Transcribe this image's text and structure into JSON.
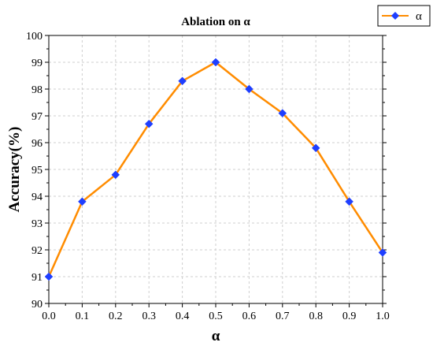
{
  "chart_data": {
    "type": "line",
    "title": "Ablation on α",
    "xlabel": "α",
    "ylabel": "Accuracy(%)",
    "x": [
      0.0,
      0.1,
      0.2,
      0.3,
      0.4,
      0.5,
      0.6,
      0.7,
      0.8,
      0.9,
      1.0
    ],
    "xlim": [
      0.0,
      1.0
    ],
    "ylim": [
      90,
      100
    ],
    "xticks": [
      "0.0",
      "0.1",
      "0.2",
      "0.3",
      "0.4",
      "0.5",
      "0.6",
      "0.7",
      "0.8",
      "0.9",
      "1.0"
    ],
    "yticks": [
      "90",
      "91",
      "92",
      "93",
      "94",
      "95",
      "96",
      "97",
      "98",
      "99",
      "100"
    ],
    "grid": true,
    "legend_position": "top-right, outside plot",
    "series": [
      {
        "name": "α",
        "values": [
          91.0,
          93.8,
          94.8,
          96.7,
          98.3,
          99.0,
          98.0,
          97.1,
          95.8,
          93.8,
          91.9
        ],
        "line_color": "#ff8c00",
        "marker_color": "#1f3fff",
        "marker": "diamond"
      }
    ]
  }
}
